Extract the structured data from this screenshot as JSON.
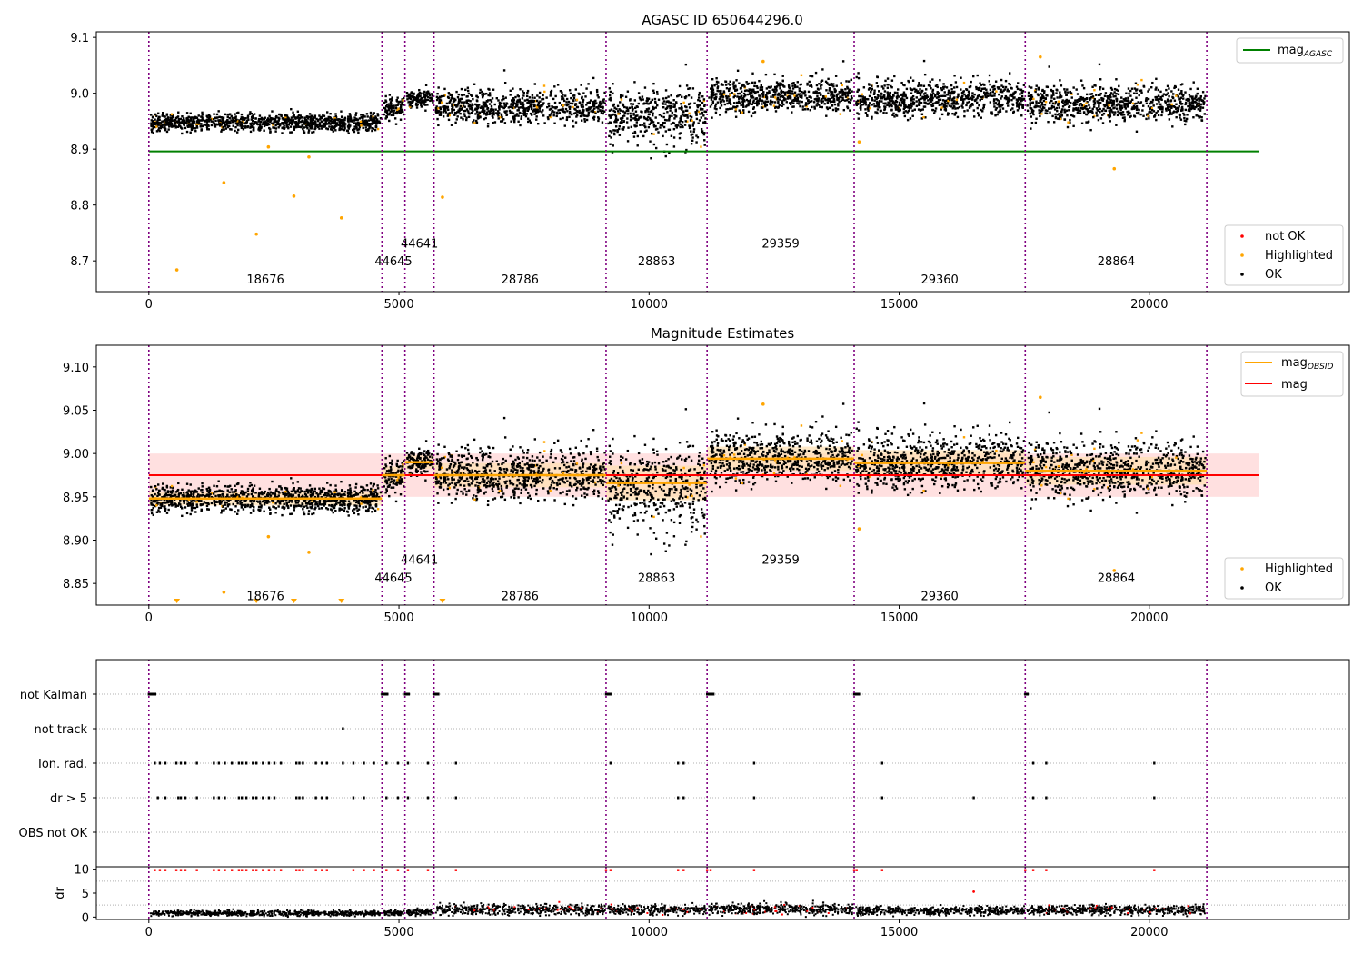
{
  "chart_data": [
    {
      "type": "scatter",
      "title": "AGASC ID 650644296.0",
      "xlim": [
        -1050,
        24000
      ],
      "ylim": [
        8.645,
        9.11
      ],
      "x_ticks": [
        0,
        5000,
        10000,
        15000,
        20000
      ],
      "x_tick_labels": [
        "0",
        "5000",
        "10000",
        "15000",
        "20000"
      ],
      "y_ticks": [
        8.7,
        8.8,
        8.9,
        9.0,
        9.1
      ],
      "y_tick_labels": [
        "8.7",
        "8.8",
        "8.9",
        "9.0",
        "9.1"
      ],
      "obs_boundaries": [
        0,
        4660,
        5120,
        5700,
        9140,
        11160,
        14100,
        17520,
        21150
      ],
      "obs_labels": [
        {
          "text": "18676",
          "x": 2330,
          "y": 8.668
        },
        {
          "text": "44645",
          "x": 4890,
          "y": 8.7
        },
        {
          "text": "44641",
          "x": 5410,
          "y": 8.732
        },
        {
          "text": "28786",
          "x": 7420,
          "y": 8.668
        },
        {
          "text": "28863",
          "x": 10150,
          "y": 8.7
        },
        {
          "text": "29359",
          "x": 12630,
          "y": 8.732
        },
        {
          "text": "29360",
          "x": 15810,
          "y": 8.668
        },
        {
          "text": "28864",
          "x": 19340,
          "y": 8.7
        }
      ],
      "mag_agasc": 8.896,
      "mag_agasc_x_range": [
        0,
        22200
      ],
      "obs_segments": [
        {
          "x0": 0,
          "x1": 4660,
          "mean": 8.948,
          "spread": 0.008
        },
        {
          "x0": 4660,
          "x1": 5120,
          "mean": 8.975,
          "spread": 0.01
        },
        {
          "x0": 5120,
          "x1": 5700,
          "mean": 8.99,
          "spread": 0.008
        },
        {
          "x0": 5700,
          "x1": 9140,
          "mean": 8.975,
          "spread": 0.014
        },
        {
          "x0": 9140,
          "x1": 11160,
          "mean": 8.966,
          "spread": 0.02
        },
        {
          "x0": 11160,
          "x1": 14100,
          "mean": 8.994,
          "spread": 0.014
        },
        {
          "x0": 14100,
          "x1": 17520,
          "mean": 8.989,
          "spread": 0.015
        },
        {
          "x0": 17520,
          "x1": 21150,
          "mean": 8.98,
          "spread": 0.016
        }
      ],
      "highlighted_outliers": [
        {
          "x": 560,
          "y": 8.684
        },
        {
          "x": 1500,
          "y": 8.84
        },
        {
          "x": 2150,
          "y": 8.748
        },
        {
          "x": 2900,
          "y": 8.816
        },
        {
          "x": 3200,
          "y": 8.886
        },
        {
          "x": 3850,
          "y": 8.777
        },
        {
          "x": 2390,
          "y": 8.904
        },
        {
          "x": 5870,
          "y": 8.814
        },
        {
          "x": 19300,
          "y": 8.865
        },
        {
          "x": 14200,
          "y": 8.913
        },
        {
          "x": 12280,
          "y": 9.057
        },
        {
          "x": 17820,
          "y": 9.065
        }
      ],
      "legend": {
        "position": "upper-right",
        "entries": [
          "mag"
        ],
        "subscript": "AGASC"
      },
      "legend2": {
        "position": "lower-right",
        "entries": [
          "not OK",
          "Highlighted",
          "OK"
        ]
      }
    },
    {
      "type": "scatter",
      "title": "Magnitude Estimates",
      "xlim": [
        -1050,
        24000
      ],
      "ylim": [
        8.825,
        9.125
      ],
      "x_ticks": [
        0,
        5000,
        10000,
        15000,
        20000
      ],
      "x_tick_labels": [
        "0",
        "5000",
        "10000",
        "15000",
        "20000"
      ],
      "y_ticks": [
        8.85,
        8.9,
        8.95,
        9.0,
        9.05,
        9.1
      ],
      "y_tick_labels": [
        "8.85",
        "8.90",
        "8.95",
        "9.00",
        "9.05",
        "9.10"
      ],
      "obs_labels": [
        {
          "text": "18676",
          "x": 2330,
          "y": 8.836
        },
        {
          "text": "44645",
          "x": 4890,
          "y": 8.857
        },
        {
          "text": "44641",
          "x": 5410,
          "y": 8.878
        },
        {
          "text": "28786",
          "x": 7420,
          "y": 8.836
        },
        {
          "text": "28863",
          "x": 10150,
          "y": 8.857
        },
        {
          "text": "29359",
          "x": 12630,
          "y": 8.878
        },
        {
          "text": "29360",
          "x": 15810,
          "y": 8.836
        },
        {
          "text": "28864",
          "x": 19340,
          "y": 8.857
        }
      ],
      "mag": 8.975,
      "mag_band": [
        8.95,
        9.0
      ],
      "mag_x_range": [
        0,
        22200
      ],
      "clipped_marker_x": [
        560,
        2150,
        2900,
        3850,
        5870
      ],
      "legend": {
        "position": "upper-right",
        "entries": [
          "mag",
          "mag"
        ],
        "subscript": "OBSID"
      },
      "legend2": {
        "position": "lower-right",
        "entries": [
          "Highlighted",
          "OK"
        ]
      }
    },
    {
      "type": "scatter",
      "title": "",
      "xlim": [
        -1050,
        24000
      ],
      "categories": [
        "not Kalman",
        "not track",
        "Ion. rad.",
        "dr > 5",
        "OBS not OK"
      ],
      "event_x": {
        "not Kalman": [
          0,
          80,
          4660,
          4720,
          5120,
          5150,
          5700,
          5740,
          9140,
          9180,
          11160,
          11200,
          11240,
          14100,
          14150,
          17520
        ],
        "not track": [
          3880
        ],
        "Ion. rad.": [
          120,
          220,
          330,
          550,
          640,
          730,
          960,
          1300,
          1400,
          1520,
          1660,
          1800,
          1860,
          1950,
          2080,
          2150,
          2280,
          2400,
          2510,
          2640,
          2950,
          3010,
          3080,
          3340,
          3460,
          3560,
          3880,
          4090,
          4300,
          4500,
          4750,
          4980,
          5180,
          5580,
          6140,
          9230,
          10580,
          10690,
          12100,
          14660,
          17680,
          17940,
          20100
        ],
        "dr > 5": [
          180,
          330,
          590,
          640,
          730,
          960,
          1300,
          1400,
          1520,
          1800,
          1860,
          1950,
          2080,
          2150,
          2280,
          2400,
          2510,
          2950,
          3010,
          3080,
          3340,
          3460,
          3560,
          4090,
          4300,
          4750,
          4980,
          5180,
          5580,
          6140,
          10580,
          10690,
          12100,
          14660,
          16490,
          17680,
          17940,
          20100
        ],
        "OBS not OK": []
      },
      "grid": "horizontal dotted"
    },
    {
      "type": "scatter",
      "ylabel": "dr",
      "xlim": [
        -1050,
        24000
      ],
      "ylim": [
        -0.5,
        10.5
      ],
      "x_ticks": [
        0,
        5000,
        10000,
        15000,
        20000
      ],
      "x_tick_labels": [
        "0",
        "5000",
        "10000",
        "15000",
        "20000"
      ],
      "y_ticks": [
        0,
        5,
        10
      ],
      "y_tick_labels": [
        "0",
        "5",
        "10"
      ],
      "clipped_dr_x": [
        120,
        220,
        330,
        550,
        640,
        730,
        960,
        1300,
        1400,
        1520,
        1660,
        1800,
        1860,
        1950,
        2080,
        2150,
        2280,
        2400,
        2510,
        2640,
        2950,
        3010,
        3080,
        3340,
        3460,
        3560,
        4090,
        4300,
        4500,
        4750,
        4980,
        5180,
        5580,
        6140,
        9140,
        9230,
        10580,
        10690,
        11160,
        11230,
        12100,
        14100,
        14150,
        14660,
        17520,
        17680,
        17940,
        20100
      ],
      "segment_dr": [
        0.8,
        0.9,
        1.0,
        1.6,
        1.5,
        1.7,
        1.3,
        1.5
      ],
      "extra_red_points": [
        {
          "x": 16490,
          "y": 5.3
        }
      ]
    }
  ],
  "colors": {
    "ok": "#000000",
    "highlighted": "#ffa500",
    "not_ok": "#ff0000",
    "agasc_line": "#008000",
    "mag_line": "#ff0000",
    "mag_band": "#ffcccc",
    "obsid_line": "#ffa500",
    "boundary": "#800080",
    "grid": "#b0b0b0"
  }
}
